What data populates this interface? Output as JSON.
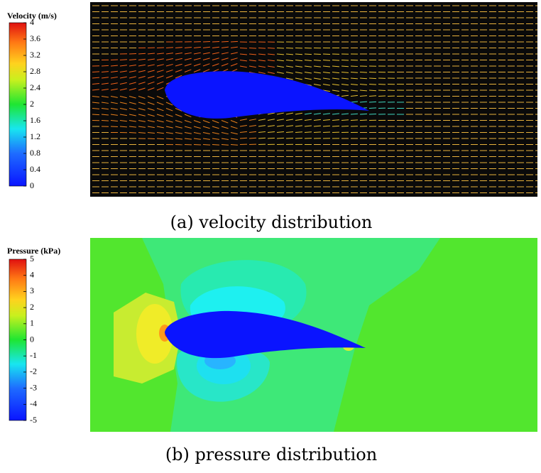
{
  "panels": [
    {
      "colorbar": {
        "title": "Velocity (m/s)",
        "lim": [
          0,
          4
        ],
        "ticks": [
          0,
          0.4,
          0.8,
          1.2,
          1.6,
          2,
          2.4,
          2.8,
          3.2,
          3.6,
          4
        ]
      },
      "caption": "(a) velocity distribution"
    },
    {
      "colorbar": {
        "title": "Pressure (kPa)",
        "lim": [
          -5,
          5
        ],
        "ticks": [
          -5,
          -4,
          -3,
          -2,
          -1,
          0,
          1,
          2,
          3,
          4,
          5
        ]
      },
      "caption": "(b) pressure distribution"
    }
  ]
}
